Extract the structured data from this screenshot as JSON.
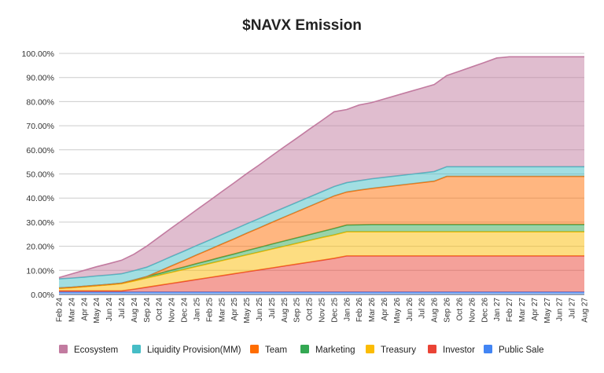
{
  "chart_data": {
    "type": "area",
    "stacked": true,
    "title": "$NAVX Emission",
    "xlabel": "",
    "ylabel": "",
    "ylim": [
      0,
      100
    ],
    "y_format": "percent_2dp",
    "grid": true,
    "legend_position": "bottom",
    "categories": [
      "Feb 24",
      "Mar 24",
      "Apr 24",
      "May 24",
      "Jun 24",
      "Jul 24",
      "Aug 24",
      "Sep 24",
      "Oct 24",
      "Nov 24",
      "Dec 24",
      "Jan 25",
      "Feb 25",
      "Mar 25",
      "Apr 25",
      "May 25",
      "Jun 25",
      "Jul 25",
      "Aug 25",
      "Sep 25",
      "Oct 25",
      "Nov 25",
      "Dec 25",
      "Jan 26",
      "Feb 26",
      "Mar 26",
      "Apr 26",
      "May 26",
      "Jun 26",
      "Jul 26",
      "Aug 26",
      "Sep 26",
      "Oct 26",
      "Nov 26",
      "Dec 26",
      "Jan 27",
      "Feb 27",
      "Mar 27",
      "Apr 27",
      "May 27",
      "Jun 27",
      "Jul 27",
      "Aug 27"
    ],
    "y_ticks": [
      "0.00%",
      "10.00%",
      "20.00%",
      "30.00%",
      "40.00%",
      "50.00%",
      "60.00%",
      "70.00%",
      "80.00%",
      "90.00%",
      "100.00%"
    ],
    "series": [
      {
        "name": "Public Sale",
        "color": "#4285f4",
        "values": [
          1,
          1,
          1,
          1,
          1,
          1,
          1,
          1,
          1,
          1,
          1,
          1,
          1,
          1,
          1,
          1,
          1,
          1,
          1,
          1,
          1,
          1,
          1,
          1,
          1,
          1,
          1,
          1,
          1,
          1,
          1,
          1,
          1,
          1,
          1,
          1,
          1,
          1,
          1,
          1,
          1,
          1,
          1
        ]
      },
      {
        "name": "Investor",
        "color": "#ea4335",
        "values": [
          0.5,
          0.5,
          0.5,
          0.5,
          0.5,
          0.5,
          1.2,
          2.0,
          2.8,
          3.6,
          4.4,
          5.2,
          6.0,
          6.8,
          7.6,
          8.4,
          9.2,
          10.0,
          10.8,
          11.6,
          12.4,
          13.2,
          14.0,
          15.0,
          15.0,
          15.0,
          15.0,
          15.0,
          15.0,
          15.0,
          15.0,
          15.0,
          15.0,
          15.0,
          15.0,
          15.0,
          15.0,
          15.0,
          15.0,
          15.0,
          15.0,
          15.0,
          15.0
        ]
      },
      {
        "name": "Treasury",
        "color": "#fbbc04",
        "values": [
          1.0,
          1.3,
          1.7,
          2.1,
          2.5,
          3.0,
          3.4,
          3.8,
          4.2,
          4.6,
          5.0,
          5.4,
          5.8,
          6.2,
          6.6,
          7.0,
          7.4,
          7.8,
          8.2,
          8.6,
          9.0,
          9.4,
          9.7,
          10.0,
          10.0,
          10.0,
          10.0,
          10.0,
          10.0,
          10.0,
          10.0,
          10.0,
          10.0,
          10.0,
          10.0,
          10.0,
          10.0,
          10.0,
          10.0,
          10.0,
          10.0,
          10.0,
          10.0
        ]
      },
      {
        "name": "Marketing",
        "color": "#34a853",
        "values": [
          0.2,
          0.2,
          0.2,
          0.2,
          0.2,
          0.2,
          0.4,
          0.6,
          0.7,
          0.9,
          1.0,
          1.2,
          1.3,
          1.5,
          1.6,
          1.8,
          1.9,
          2.1,
          2.2,
          2.3,
          2.4,
          2.5,
          2.7,
          2.8,
          2.9,
          3.0,
          3.0,
          3.0,
          3.0,
          3.0,
          3.0,
          3.0,
          3.0,
          3.0,
          3.0,
          3.0,
          3.0,
          3.0,
          3.0,
          3.0,
          3.0,
          3.0,
          3.0
        ]
      },
      {
        "name": "Team",
        "color": "#ff6d01",
        "values": [
          0,
          0,
          0,
          0,
          0,
          0,
          0,
          0,
          0.9,
          1.8,
          2.7,
          3.6,
          4.5,
          5.4,
          6.3,
          7.2,
          8.1,
          9.0,
          9.9,
          10.8,
          11.7,
          12.6,
          13.5,
          13.7,
          14.4,
          15.0,
          15.6,
          16.2,
          16.8,
          17.4,
          18.0,
          20.0,
          20.0,
          20.0,
          20.0,
          20.0,
          20.0,
          20.0,
          20.0,
          20.0,
          20.0,
          20.0,
          20.0
        ]
      },
      {
        "name": "Liquidity Provision(MM)",
        "color": "#46bdc6",
        "values": [
          3.8,
          3.8,
          3.8,
          3.9,
          3.9,
          3.9,
          3.9,
          3.9,
          3.9,
          3.9,
          3.9,
          3.9,
          3.9,
          3.9,
          3.9,
          3.9,
          3.9,
          3.9,
          3.9,
          3.9,
          3.9,
          3.9,
          3.9,
          3.9,
          3.9,
          4.0,
          4.0,
          4.0,
          4.0,
          4.0,
          4.0,
          4.0,
          4.0,
          4.0,
          4.0,
          4.0,
          4.0,
          4.0,
          4.0,
          4.0,
          4.0,
          4.0,
          4.0
        ]
      },
      {
        "name": "Ecosystem",
        "color": "#c27ba0",
        "values": [
          0.5,
          1.7,
          2.8,
          3.8,
          4.7,
          5.6,
          6.8,
          8.7,
          10.3,
          11.8,
          13.3,
          14.8,
          16.3,
          17.8,
          19.3,
          20.8,
          22.2,
          23.7,
          25.2,
          26.6,
          28.1,
          29.5,
          31.0,
          30.3,
          31.4,
          31.6,
          32.5,
          33.4,
          34.3,
          35.2,
          36.1,
          37.8,
          39.6,
          41.4,
          43.2,
          45.1,
          45.6,
          45.6,
          45.6,
          45.6,
          45.6,
          45.6,
          45.6
        ]
      }
    ]
  }
}
